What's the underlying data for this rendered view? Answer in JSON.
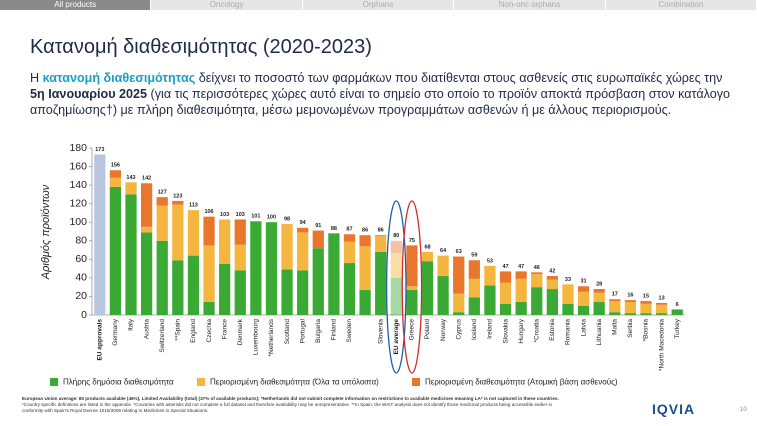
{
  "tabs": [
    "All products",
    "Oncology",
    "Orphans",
    "Non-onc orphans",
    "Combination"
  ],
  "active_tab": "All products",
  "title": "Κατανομή διαθεσιμότητας (2020-2023)",
  "intro": {
    "parts": [
      "Η ",
      "κατανομή διαθεσιμότητας",
      " δείχνει το ποσοστό των φαρμάκων που διατίθενται στους ασθενείς στις ευρωπαϊκές χώρες την ",
      "5η Ιανουαρίου 2025",
      " (για τις περισσότερες χώρες αυτό είναι το σημείο στο οποίο το προϊόν αποκτά πρόσβαση στον κατάλογο αποζημίωσης†) με πλήρη διαθεσιμότητα, μέσω μεμονωμένων προγραμμάτων ασθενών ή με άλλους περιορισμούς."
    ]
  },
  "chart_data": {
    "type": "stacked_bar",
    "y_label": "Αριθμός προϊόντων",
    "categories": [
      "EU approvals",
      "Germany",
      "Italy",
      "Austria",
      "Switzerland",
      "**Spain",
      "England",
      "Czechia",
      "France",
      "Denmark",
      "Luxembourg",
      "*Netherlands",
      "Scotland",
      "Portugal",
      "Bulgaria",
      "Finland",
      "Sweden",
      null,
      "Slovenia",
      "EU average",
      "Greece",
      "Poland",
      "Norway",
      "Cyprus",
      "Iceland",
      "Ireland",
      "Slovakia",
      "Hungary",
      "*Croatia",
      "Estonia",
      "Romania",
      "Latvia",
      "Lithuania",
      "Malta",
      "Serbia",
      "*Bosnia",
      "*North Macedonia",
      "Turkey"
    ],
    "totals": [
      173,
      156,
      143,
      142,
      127,
      123,
      113,
      106,
      103,
      103,
      101,
      100,
      98,
      94,
      91,
      88,
      87,
      86,
      86,
      80,
      75,
      68,
      64,
      63,
      59,
      53,
      47,
      47,
      46,
      42,
      33,
      31,
      28,
      17,
      16,
      15,
      13,
      6
    ],
    "series": [
      {
        "name": "Πλήρης δημόσια διαθεσιμότητα",
        "color": "#3aaa35",
        "values": [
          173,
          138,
          130,
          89,
          80,
          59,
          64,
          14,
          55,
          48,
          101,
          100,
          49,
          48,
          72,
          88,
          56,
          27,
          68,
          40,
          27,
          58,
          42,
          3,
          19,
          32,
          12,
          14,
          30,
          28,
          12,
          10,
          14,
          3,
          2,
          2,
          2,
          6
        ]
      },
      {
        "name": "Περιορισμένη διαθεσιμότητα (Όλα τα υπόλοιπα)",
        "color": "#f4b63f",
        "values": [
          0,
          10,
          13,
          6,
          38,
          60,
          49,
          61,
          48,
          28,
          0,
          0,
          49,
          41,
          0,
          0,
          23,
          47,
          17,
          27,
          4,
          10,
          22,
          20,
          20,
          21,
          23,
          25,
          14,
          10,
          21,
          15,
          10,
          12,
          12,
          10,
          9,
          0
        ]
      },
      {
        "name": "Περιορισμένη διαθεσιμότητα (Ατομική βάση ασθενούς)",
        "color": "#e8762b",
        "values": [
          0,
          8,
          0,
          47,
          9,
          4,
          0,
          31,
          0,
          27,
          0,
          0,
          0,
          5,
          19,
          0,
          8,
          12,
          1,
          13,
          44,
          0,
          0,
          40,
          20,
          0,
          12,
          8,
          2,
          4,
          0,
          6,
          4,
          2,
          2,
          3,
          2,
          0
        ]
      }
    ],
    "reference_bars": [
      {
        "category": "EU approvals",
        "color": "#b9c6de"
      },
      {
        "category": "EU average",
        "opacity": 0.45
      }
    ],
    "circled": [
      {
        "category": "EU average",
        "color": "#1f5fa8"
      },
      {
        "category": "Greece",
        "color": "#d42b2b"
      }
    ],
    "ylim": [
      0,
      180
    ],
    "yticks": [
      0,
      20,
      40,
      60,
      80,
      100,
      120,
      140,
      160,
      180
    ],
    "grid": false
  },
  "footnotes": [
    "European Union average: 80 products available (46%), Limited Availability (total) (37% of available products); *Netherlands did not submit complete information on restrictions to available medicines meaning LA* is not captured in these countries.",
    "*Country specific definitions are listed in the appendix. *Countries with asterisks did not complete a full dataset and therefore availability may be unrepresentative. **In Spain, the WAIT analysis does not identify those medicinal products being accessible earlier in",
    "conformity with Spain's Royal Decree 1015/2009 relating to Medicines in Special Situations."
  ],
  "logo": "IQVIA",
  "page_number": "10"
}
